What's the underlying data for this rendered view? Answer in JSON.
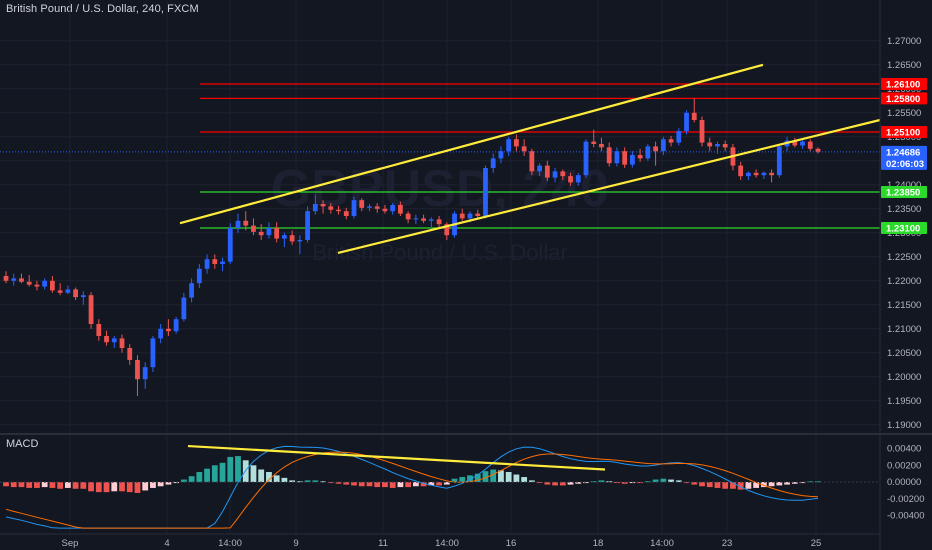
{
  "header": {
    "symbol_title": "British Pound / U.S. Dollar, 240, FXCM",
    "macd_label": "MACD"
  },
  "watermark": {
    "symbol": "GBPUSD, 240",
    "description": "British Pound / U.S. Dollar"
  },
  "colors": {
    "background": "#131722",
    "grid": "#1e2230",
    "up_candle": "#2962ff",
    "down_candle": "#ef5350",
    "resistance": "#ff0000",
    "support": "#2bd92b",
    "trendline": "#ffeb3b",
    "macd_line": "#2196f3",
    "signal_line": "#ff6d00",
    "hist_up_strong": "#26a69a",
    "hist_up_weak": "#b2dfdb",
    "hist_down_strong": "#ef5350",
    "hist_down_weak": "#ffcdd2"
  },
  "chart_data": [
    {
      "type": "candlestick",
      "title": "British Pound / U.S. Dollar, 240, FXCM",
      "ylim": [
        1.1885,
        1.2785
      ],
      "y_ticks": [
        "1.27000",
        "1.26500",
        "1.26000",
        "1.25500",
        "1.25000",
        "1.24500",
        "1.24000",
        "1.23500",
        "1.23000",
        "1.22500",
        "1.22000",
        "1.21500",
        "1.21000",
        "1.20500",
        "1.20000",
        "1.19500",
        "1.19000"
      ],
      "x_ticks": [
        "Sep",
        "4",
        "14:00",
        "9",
        "11",
        "14:00",
        "16",
        "18",
        "14:00",
        "23",
        "25"
      ],
      "current_price": {
        "price": "1.24686",
        "countdown": "02:06:03"
      },
      "horizontal_levels": [
        {
          "price": "1.26100",
          "kind": "resistance"
        },
        {
          "price": "1.25800",
          "kind": "resistance"
        },
        {
          "price": "1.25100",
          "kind": "resistance"
        },
        {
          "price": "1.23850",
          "kind": "support"
        },
        {
          "price": "1.23100",
          "kind": "support"
        }
      ],
      "trendlines": [
        {
          "name": "channel-upper",
          "from": [
            180,
            1.232
          ],
          "to": [
            763,
            1.265
          ]
        },
        {
          "name": "channel-lower",
          "from": [
            338,
            1.2258
          ],
          "to": [
            880,
            1.2535
          ]
        }
      ],
      "candles": [
        [
          1.221,
          1.222,
          1.2195,
          1.22
        ],
        [
          1.22,
          1.2215,
          1.219,
          1.2205
        ],
        [
          1.2205,
          1.2215,
          1.2195,
          1.2198
        ],
        [
          1.2198,
          1.2212,
          1.2188,
          1.2192
        ],
        [
          1.2192,
          1.22,
          1.218,
          1.2188
        ],
        [
          1.2188,
          1.2205,
          1.2182,
          1.22
        ],
        [
          1.22,
          1.221,
          1.2175,
          1.218
        ],
        [
          1.218,
          1.2195,
          1.217,
          1.2175
        ],
        [
          1.2175,
          1.219,
          1.2172,
          1.2182
        ],
        [
          1.2182,
          1.2186,
          1.216,
          1.2166
        ],
        [
          1.2166,
          1.2178,
          1.215,
          1.217
        ],
        [
          1.217,
          1.2176,
          1.21,
          1.211
        ],
        [
          1.211,
          1.212,
          1.2075,
          1.2085
        ],
        [
          1.2085,
          1.2096,
          1.2065,
          1.2072
        ],
        [
          1.2072,
          1.2085,
          1.206,
          1.208
        ],
        [
          1.208,
          1.2088,
          1.205,
          1.206
        ],
        [
          1.206,
          1.2068,
          1.2025,
          1.2035
        ],
        [
          1.2035,
          1.2045,
          1.196,
          1.1995
        ],
        [
          1.1995,
          1.203,
          1.1975,
          1.202
        ],
        [
          1.202,
          1.2085,
          1.201,
          1.208
        ],
        [
          1.208,
          1.211,
          1.207,
          1.21
        ],
        [
          1.21,
          1.212,
          1.2085,
          1.2095
        ],
        [
          1.2095,
          1.2125,
          1.209,
          1.212
        ],
        [
          1.212,
          1.2175,
          1.2115,
          1.2165
        ],
        [
          1.2165,
          1.2205,
          1.2155,
          1.2195
        ],
        [
          1.2195,
          1.2235,
          1.2185,
          1.2225
        ],
        [
          1.2225,
          1.2255,
          1.2215,
          1.2245
        ],
        [
          1.2245,
          1.2255,
          1.2225,
          1.2235
        ],
        [
          1.2235,
          1.2248,
          1.222,
          1.224
        ],
        [
          1.224,
          1.232,
          1.2235,
          1.231
        ],
        [
          1.231,
          1.234,
          1.23,
          1.2325
        ],
        [
          1.2325,
          1.2345,
          1.2305,
          1.2315
        ],
        [
          1.2315,
          1.233,
          1.2295,
          1.2302
        ],
        [
          1.2302,
          1.2318,
          1.2285,
          1.2295
        ],
        [
          1.2295,
          1.2322,
          1.2288,
          1.231
        ],
        [
          1.231,
          1.2322,
          1.228,
          1.2288
        ],
        [
          1.2288,
          1.23,
          1.227,
          1.2295
        ],
        [
          1.2295,
          1.2305,
          1.2275,
          1.2282
        ],
        [
          1.2282,
          1.2295,
          1.2255,
          1.2285
        ],
        [
          1.2285,
          1.2355,
          1.228,
          1.2345
        ],
        [
          1.2345,
          1.238,
          1.2338,
          1.236
        ],
        [
          1.236,
          1.2368,
          1.234,
          1.2355
        ],
        [
          1.2355,
          1.2362,
          1.234,
          1.2348
        ],
        [
          1.2348,
          1.2356,
          1.2338,
          1.2345
        ],
        [
          1.2345,
          1.2352,
          1.2328,
          1.2335
        ],
        [
          1.2335,
          1.2375,
          1.233,
          1.2368
        ],
        [
          1.2368,
          1.2372,
          1.2345,
          1.2352
        ],
        [
          1.2352,
          1.236,
          1.2345,
          1.2355
        ],
        [
          1.2355,
          1.2362,
          1.2342,
          1.235
        ],
        [
          1.235,
          1.2358,
          1.234,
          1.2345
        ],
        [
          1.2345,
          1.2362,
          1.2338,
          1.2358
        ],
        [
          1.2358,
          1.2365,
          1.2335,
          1.234
        ],
        [
          1.234,
          1.2345,
          1.232,
          1.2328
        ],
        [
          1.2328,
          1.2338,
          1.2318,
          1.233
        ],
        [
          1.233,
          1.2338,
          1.232,
          1.2325
        ],
        [
          1.2325,
          1.2332,
          1.231,
          1.2328
        ],
        [
          1.2328,
          1.2335,
          1.2312,
          1.2318
        ],
        [
          1.2318,
          1.2322,
          1.2285,
          1.2295
        ],
        [
          1.2295,
          1.2345,
          1.229,
          1.234
        ],
        [
          1.234,
          1.235,
          1.2325,
          1.233
        ],
        [
          1.233,
          1.2345,
          1.2322,
          1.234
        ],
        [
          1.234,
          1.2348,
          1.2328,
          1.2335
        ],
        [
          1.2335,
          1.244,
          1.233,
          1.2435
        ],
        [
          1.2435,
          1.2465,
          1.2425,
          1.2455
        ],
        [
          1.2455,
          1.248,
          1.2445,
          1.247
        ],
        [
          1.247,
          1.25,
          1.246,
          1.2495
        ],
        [
          1.2495,
          1.2505,
          1.247,
          1.248
        ],
        [
          1.248,
          1.2495,
          1.246,
          1.247
        ],
        [
          1.247,
          1.2475,
          1.242,
          1.2428
        ],
        [
          1.2428,
          1.2445,
          1.2418,
          1.244
        ],
        [
          1.244,
          1.245,
          1.2408,
          1.2415
        ],
        [
          1.2415,
          1.2435,
          1.2405,
          1.2428
        ],
        [
          1.2428,
          1.2432,
          1.241,
          1.2418
        ],
        [
          1.2418,
          1.2425,
          1.2398,
          1.2405
        ],
        [
          1.2405,
          1.2425,
          1.2398,
          1.242
        ],
        [
          1.242,
          1.2495,
          1.2415,
          1.249
        ],
        [
          1.249,
          1.2515,
          1.2478,
          1.2485
        ],
        [
          1.2485,
          1.2498,
          1.247,
          1.2478
        ],
        [
          1.2478,
          1.2488,
          1.2438,
          1.2445
        ],
        [
          1.2445,
          1.2478,
          1.2438,
          1.247
        ],
        [
          1.247,
          1.2478,
          1.2435,
          1.2442
        ],
        [
          1.2442,
          1.247,
          1.2436,
          1.2462
        ],
        [
          1.2462,
          1.2475,
          1.2448,
          1.2455
        ],
        [
          1.2455,
          1.2485,
          1.245,
          1.248
        ],
        [
          1.248,
          1.249,
          1.244,
          1.247
        ],
        [
          1.247,
          1.25,
          1.2462,
          1.2495
        ],
        [
          1.2495,
          1.2502,
          1.248,
          1.2488
        ],
        [
          1.2488,
          1.2518,
          1.2482,
          1.2512
        ],
        [
          1.2512,
          1.2555,
          1.2505,
          1.255
        ],
        [
          1.255,
          1.258,
          1.253,
          1.2535
        ],
        [
          1.2535,
          1.2542,
          1.248,
          1.2488
        ],
        [
          1.2488,
          1.2498,
          1.247,
          1.248
        ],
        [
          1.248,
          1.249,
          1.2465,
          1.2485
        ],
        [
          1.2485,
          1.2492,
          1.247,
          1.2478
        ],
        [
          1.2478,
          1.2485,
          1.243,
          1.244
        ],
        [
          1.244,
          1.2448,
          1.241,
          1.2418
        ],
        [
          1.2418,
          1.2428,
          1.241,
          1.2425
        ],
        [
          1.2425,
          1.2432,
          1.2415,
          1.242
        ],
        [
          1.242,
          1.2428,
          1.2412,
          1.2425
        ],
        [
          1.2425,
          1.2432,
          1.2405,
          1.242
        ],
        [
          1.242,
          1.2485,
          1.2415,
          1.248
        ],
        [
          1.248,
          1.25,
          1.247,
          1.2492
        ],
        [
          1.2492,
          1.2498,
          1.2478,
          1.2482
        ],
        [
          1.2482,
          1.2495,
          1.2475,
          1.249
        ],
        [
          1.249,
          1.2495,
          1.247,
          1.2475
        ],
        [
          1.2475,
          1.2478,
          1.2465,
          1.2469
        ]
      ]
    },
    {
      "type": "macd",
      "title": "MACD",
      "ylim": [
        -0.0062,
        0.0055
      ],
      "y_ticks": [
        "0.00400",
        "0.00200",
        "0.00000",
        "-0.00200",
        "-0.00400"
      ],
      "histogram": [
        -0.0005,
        -0.0006,
        -0.0006,
        -0.0007,
        -0.0007,
        -0.0006,
        -0.0007,
        -0.0008,
        -0.0007,
        -0.0008,
        -0.0008,
        -0.0011,
        -0.0012,
        -0.0012,
        -0.0011,
        -0.0011,
        -0.0012,
        -0.0013,
        -0.001,
        -0.0007,
        -0.0005,
        -0.0003,
        -0.0001,
        0.0003,
        0.0007,
        0.0012,
        0.0016,
        0.002,
        0.0023,
        0.003,
        0.0031,
        0.0026,
        0.002,
        0.0015,
        0.0012,
        0.0008,
        0.0005,
        0.0002,
        0.0001,
        0.0002,
        0.0002,
        0.0001,
        -0.0001,
        -0.0002,
        -0.0003,
        -0.0004,
        -0.0005,
        -0.0005,
        -0.0006,
        -0.0006,
        -0.0007,
        -0.0006,
        -0.0006,
        -0.0005,
        -0.0005,
        -0.0004,
        -0.0004,
        -0.0003,
        0.0004,
        0.0006,
        0.0008,
        0.001,
        0.0013,
        0.0015,
        0.0014,
        0.0012,
        0.0009,
        0.0006,
        0.0002,
        -0.0001,
        -0.0003,
        -0.0004,
        -0.0004,
        -0.0003,
        -0.0002,
        -0.0001,
        0.0001,
        0.0002,
        0.0001,
        -0.0001,
        -0.0002,
        -0.0001,
        -0.0001,
        0.0001,
        0.0003,
        0.0004,
        0.0003,
        0.0002,
        -0.0001,
        -0.0003,
        -0.0005,
        -0.0006,
        -0.0007,
        -0.0008,
        -0.0008,
        -0.0009,
        -0.0008,
        -0.0007,
        -0.0006,
        -0.0005,
        -0.0004,
        -0.0003,
        -0.0002,
        -0.0001,
        0.0001,
        0.0001
      ],
      "trendline": {
        "name": "macd-divergence",
        "from": [
          188,
          0.0043
        ],
        "to": [
          605,
          0.0015
        ]
      }
    }
  ]
}
